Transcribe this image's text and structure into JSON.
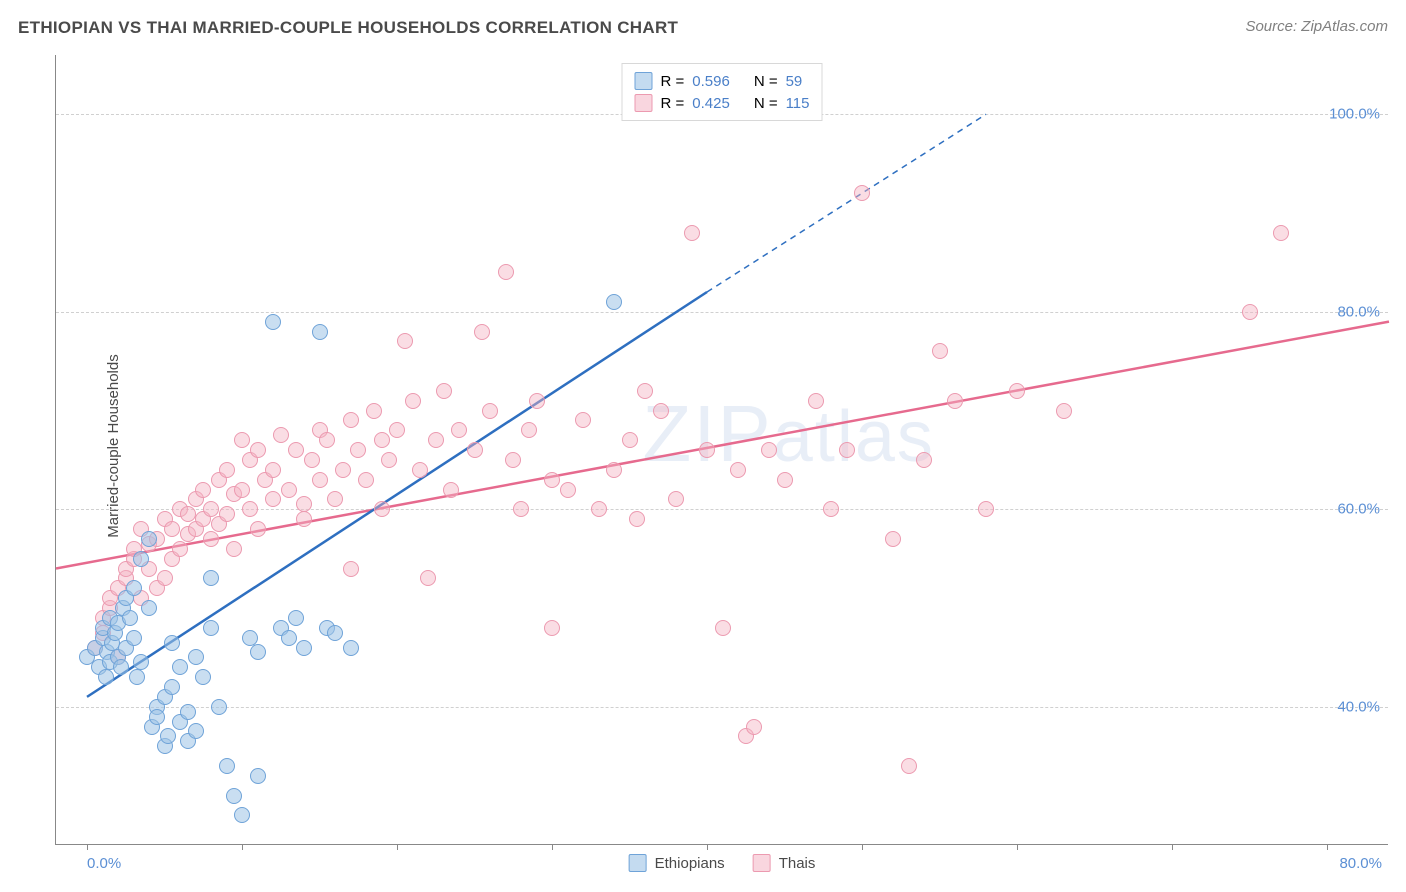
{
  "header": {
    "title": "ETHIOPIAN VS THAI MARRIED-COUPLE HOUSEHOLDS CORRELATION CHART",
    "source": "Source: ZipAtlas.com"
  },
  "ylabel": "Married-couple Households",
  "watermark": "ZIPatlas",
  "chart": {
    "type": "scatter",
    "background_color": "#ffffff",
    "grid_color": "#d0d0d0",
    "axis_color": "#888888",
    "label_color": "#5b8fd4",
    "xlim": [
      -2,
      84
    ],
    "ylim": [
      26,
      106
    ],
    "y_ticks": [
      40.0,
      60.0,
      80.0,
      100.0
    ],
    "y_tick_labels": [
      "40.0%",
      "60.0%",
      "80.0%",
      "100.0%"
    ],
    "x_ticks": [
      0,
      10,
      20,
      30,
      40,
      50,
      60,
      70,
      80
    ],
    "x_tick_labels_visible": {
      "0": "0.0%",
      "80": "80.0%"
    },
    "marker_size": 16,
    "marker_opacity_fill": 0.5,
    "series": {
      "ethiopians": {
        "label": "Ethiopians",
        "fill_color": "#9dc3e6",
        "stroke_color": "#6fa3d8",
        "trend_color": "#2e6fc0",
        "trend_width": 2.5,
        "R": "0.596",
        "N": "59",
        "trend": {
          "x1": 0,
          "y1": 41,
          "x2": 40,
          "y2": 82,
          "extend_x": 58,
          "extend_y": 100
        },
        "points": [
          [
            0,
            45
          ],
          [
            0.5,
            46
          ],
          [
            0.8,
            44
          ],
          [
            1,
            47
          ],
          [
            1,
            48
          ],
          [
            1.2,
            43
          ],
          [
            1.3,
            45.5
          ],
          [
            1.5,
            44.5
          ],
          [
            1.5,
            49
          ],
          [
            1.6,
            46.5
          ],
          [
            1.8,
            47.5
          ],
          [
            2,
            48.5
          ],
          [
            2,
            45
          ],
          [
            2.2,
            44
          ],
          [
            2.3,
            50
          ],
          [
            2.5,
            51
          ],
          [
            2.5,
            46
          ],
          [
            2.8,
            49
          ],
          [
            3,
            52
          ],
          [
            3,
            47
          ],
          [
            3.2,
            43
          ],
          [
            3.5,
            44.5
          ],
          [
            3.5,
            55
          ],
          [
            4,
            57
          ],
          [
            4,
            50
          ],
          [
            4.2,
            38
          ],
          [
            4.5,
            40
          ],
          [
            4.5,
            39
          ],
          [
            5,
            41
          ],
          [
            5,
            36
          ],
          [
            5.2,
            37
          ],
          [
            5.5,
            42
          ],
          [
            5.5,
            46.5
          ],
          [
            6,
            44
          ],
          [
            6,
            38.5
          ],
          [
            6.5,
            39.5
          ],
          [
            6.5,
            36.5
          ],
          [
            7,
            37.5
          ],
          [
            7,
            45
          ],
          [
            7.5,
            43
          ],
          [
            8,
            48
          ],
          [
            8,
            53
          ],
          [
            8.5,
            40
          ],
          [
            9,
            34
          ],
          [
            9.5,
            31
          ],
          [
            10,
            29
          ],
          [
            10.5,
            47
          ],
          [
            11,
            45.5
          ],
          [
            11,
            33
          ],
          [
            12,
            79
          ],
          [
            12.5,
            48
          ],
          [
            13,
            47
          ],
          [
            13.5,
            49
          ],
          [
            14,
            46
          ],
          [
            15,
            78
          ],
          [
            15.5,
            48
          ],
          [
            16,
            47.5
          ],
          [
            17,
            46
          ],
          [
            34,
            81
          ]
        ]
      },
      "thais": {
        "label": "Thais",
        "fill_color": "#f4b4c4",
        "stroke_color": "#ec9ab0",
        "trend_color": "#e66a8e",
        "trend_width": 2.5,
        "R": "0.425",
        "N": "115",
        "trend": {
          "x1": -2,
          "y1": 54,
          "x2": 84,
          "y2": 79
        },
        "points": [
          [
            0.5,
            46
          ],
          [
            1,
            47.5
          ],
          [
            1,
            49
          ],
          [
            1.5,
            50
          ],
          [
            1.5,
            51
          ],
          [
            2,
            45
          ],
          [
            2,
            52
          ],
          [
            2.5,
            53
          ],
          [
            2.5,
            54
          ],
          [
            3,
            55
          ],
          [
            3,
            56
          ],
          [
            3.5,
            51
          ],
          [
            3.5,
            58
          ],
          [
            4,
            54
          ],
          [
            4,
            56.5
          ],
          [
            4.5,
            57
          ],
          [
            4.5,
            52
          ],
          [
            5,
            59
          ],
          [
            5,
            53
          ],
          [
            5.5,
            58
          ],
          [
            5.5,
            55
          ],
          [
            6,
            60
          ],
          [
            6,
            56
          ],
          [
            6.5,
            57.5
          ],
          [
            6.5,
            59.5
          ],
          [
            7,
            61
          ],
          [
            7,
            58
          ],
          [
            7.5,
            59
          ],
          [
            7.5,
            62
          ],
          [
            8,
            57
          ],
          [
            8,
            60
          ],
          [
            8.5,
            63
          ],
          [
            8.5,
            58.5
          ],
          [
            9,
            59.5
          ],
          [
            9,
            64
          ],
          [
            9.5,
            61.5
          ],
          [
            9.5,
            56
          ],
          [
            10,
            62
          ],
          [
            10,
            67
          ],
          [
            10.5,
            60
          ],
          [
            10.5,
            65
          ],
          [
            11,
            58
          ],
          [
            11,
            66
          ],
          [
            11.5,
            63
          ],
          [
            12,
            61
          ],
          [
            12,
            64
          ],
          [
            12.5,
            67.5
          ],
          [
            13,
            62
          ],
          [
            13.5,
            66
          ],
          [
            14,
            59
          ],
          [
            14,
            60.5
          ],
          [
            14.5,
            65
          ],
          [
            15,
            63
          ],
          [
            15,
            68
          ],
          [
            15.5,
            67
          ],
          [
            16,
            61
          ],
          [
            16.5,
            64
          ],
          [
            17,
            54
          ],
          [
            17,
            69
          ],
          [
            17.5,
            66
          ],
          [
            18,
            63
          ],
          [
            18.5,
            70
          ],
          [
            19,
            67
          ],
          [
            19,
            60
          ],
          [
            19.5,
            65
          ],
          [
            20,
            68
          ],
          [
            20.5,
            77
          ],
          [
            21,
            71
          ],
          [
            21.5,
            64
          ],
          [
            22,
            53
          ],
          [
            22.5,
            67
          ],
          [
            23,
            72
          ],
          [
            23.5,
            62
          ],
          [
            24,
            68
          ],
          [
            25,
            66
          ],
          [
            25.5,
            78
          ],
          [
            26,
            70
          ],
          [
            27,
            84
          ],
          [
            27.5,
            65
          ],
          [
            28,
            60
          ],
          [
            28.5,
            68
          ],
          [
            29,
            71
          ],
          [
            30,
            63
          ],
          [
            30,
            48
          ],
          [
            31,
            62
          ],
          [
            32,
            69
          ],
          [
            33,
            60
          ],
          [
            34,
            64
          ],
          [
            35,
            67
          ],
          [
            35.5,
            59
          ],
          [
            36,
            72
          ],
          [
            37,
            70
          ],
          [
            38,
            61
          ],
          [
            39,
            88
          ],
          [
            40,
            66
          ],
          [
            41,
            48
          ],
          [
            42,
            64
          ],
          [
            42.5,
            37
          ],
          [
            43,
            38
          ],
          [
            44,
            66
          ],
          [
            45,
            63
          ],
          [
            47,
            71
          ],
          [
            48,
            60
          ],
          [
            49,
            66
          ],
          [
            50,
            92
          ],
          [
            52,
            57
          ],
          [
            53,
            34
          ],
          [
            54,
            65
          ],
          [
            55,
            76
          ],
          [
            56,
            71
          ],
          [
            58,
            60
          ],
          [
            60,
            72
          ],
          [
            63,
            70
          ],
          [
            75,
            80
          ],
          [
            77,
            88
          ]
        ]
      }
    },
    "legend_top_labels": {
      "R": "R =",
      "N": "N ="
    },
    "bottom_legend_labels": {
      "ethiopians": "Ethiopians",
      "thais": "Thais"
    }
  }
}
